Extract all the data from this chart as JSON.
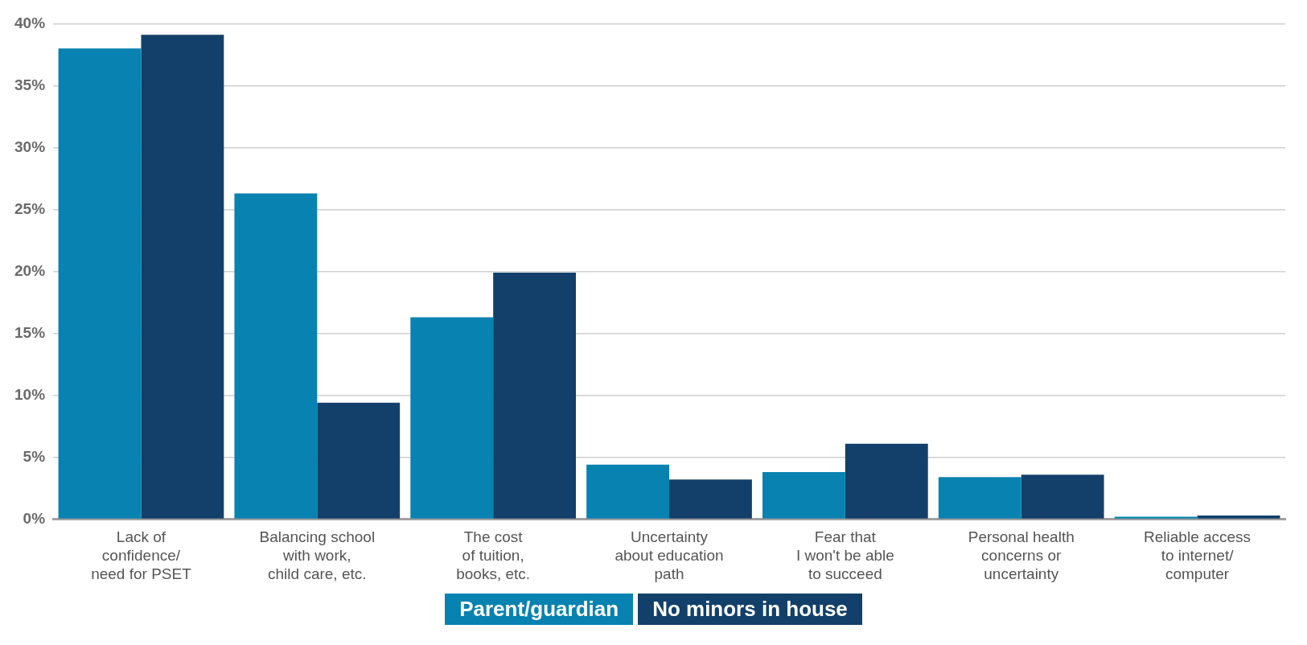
{
  "chart_data": {
    "type": "bar",
    "categories": [
      "Lack of\nconfidence/\nneed for PSET",
      "Balancing school\nwith work,\nchild care, etc.",
      "The cost\nof tuition,\nbooks, etc.",
      "Uncertainty\nabout education\npath",
      "Fear that\nI won't be able\nto succeed",
      "Personal health\nconcerns or\nuncertainty",
      "Reliable access\nto internet/\ncomputer"
    ],
    "series": [
      {
        "name": "Parent/guardian",
        "color": "#0882b0",
        "values": [
          38.0,
          26.3,
          16.3,
          4.4,
          3.8,
          3.4,
          0.2
        ]
      },
      {
        "name": "No minors in house",
        "color": "#12406a",
        "values": [
          39.1,
          9.4,
          19.9,
          3.2,
          6.1,
          3.6,
          0.3
        ]
      }
    ],
    "ylim": [
      0,
      40
    ],
    "yticks": [
      {
        "value": 0,
        "label": "0%"
      },
      {
        "value": 5,
        "label": "5%"
      },
      {
        "value": 10,
        "label": "10%"
      },
      {
        "value": 15,
        "label": "15%"
      },
      {
        "value": 20,
        "label": "20%"
      },
      {
        "value": 25,
        "label": "25%"
      },
      {
        "value": 30,
        "label": "30%"
      },
      {
        "value": 35,
        "label": "35%"
      },
      {
        "value": 40,
        "label": "40%"
      }
    ],
    "grid": "y",
    "legend": "bottom"
  }
}
